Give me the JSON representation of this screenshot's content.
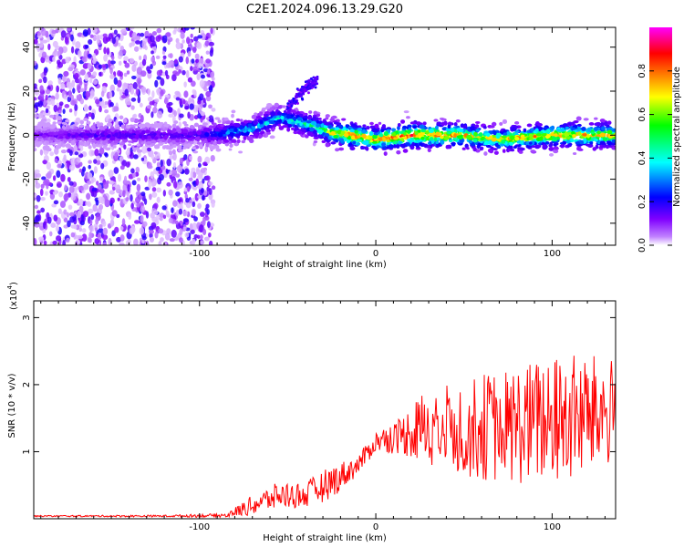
{
  "figure_title": "C2E1.2024.096.13.29.G20",
  "chart_data": [
    {
      "type": "heatmap",
      "xlabel": "Height of straight line (km)",
      "ylabel": "Frequency (Hz)",
      "xlim": [
        -194,
        136
      ],
      "ylim": [
        -50,
        49
      ],
      "x_ticks": [
        -100,
        0,
        100
      ],
      "x_tick_labels": [
        "-100",
        "0",
        "100"
      ],
      "y_ticks": [
        -40,
        -20,
        0,
        20,
        40
      ],
      "y_tick_labels": [
        "-40",
        "-20",
        "0",
        "20",
        "40"
      ],
      "grid": false,
      "colorbar": {
        "label": "Normalized spectral amplitude",
        "range": [
          0,
          1
        ],
        "ticks": [
          0.0,
          0.2,
          0.4,
          0.6,
          0.8
        ],
        "tick_labels": [
          "0.0",
          "0.2",
          "0.4",
          "0.6",
          "0.8"
        ],
        "colormap": [
          "#ffffff",
          "#8000ff",
          "#0000ff",
          "#00ffff",
          "#00ff00",
          "#ffff00",
          "#ff8000",
          "#ff0000",
          "#ff00ff"
        ]
      },
      "band": [
        {
          "x": -194,
          "f": 0,
          "amp": 0.15
        },
        {
          "x": -150,
          "f": 0,
          "amp": 0.22
        },
        {
          "x": -120,
          "f": 0,
          "amp": 0.2
        },
        {
          "x": -100,
          "f": 0,
          "amp": 0.22
        },
        {
          "x": -85,
          "f": 1,
          "amp": 0.4
        },
        {
          "x": -70,
          "f": 3,
          "amp": 0.45
        },
        {
          "x": -55,
          "f": 8,
          "amp": 0.45
        },
        {
          "x": -45,
          "f": 6,
          "amp": 0.5
        },
        {
          "x": -35,
          "f": 4,
          "amp": 0.55
        },
        {
          "x": -25,
          "f": 1,
          "amp": 0.7
        },
        {
          "x": -15,
          "f": 0,
          "amp": 0.9
        },
        {
          "x": 0,
          "f": -2,
          "amp": 0.85
        },
        {
          "x": 20,
          "f": 0,
          "amp": 0.95
        },
        {
          "x": 50,
          "f": 0,
          "amp": 0.8
        },
        {
          "x": 70,
          "f": -2,
          "amp": 0.75
        },
        {
          "x": 100,
          "f": 0,
          "amp": 0.85
        },
        {
          "x": 136,
          "f": 0,
          "amp": 0.8
        }
      ],
      "branch": [
        {
          "x": -50,
          "f": 12
        },
        {
          "x": -44,
          "f": 18
        },
        {
          "x": -38,
          "f": 22
        },
        {
          "x": -33,
          "f": 25
        }
      ],
      "scatter_region": {
        "x_range": [
          -194,
          -92
        ],
        "f_range": [
          -50,
          49
        ]
      }
    },
    {
      "type": "line",
      "xlabel": "Height of straight line (km)",
      "ylabel": "SNR (10 * v/v)",
      "y_multiplier": "(x10",
      "y_multiplier_exp": "4",
      "y_multiplier_close": ")",
      "xlim": [
        -194,
        136
      ],
      "ylim": [
        0,
        3.25
      ],
      "x_ticks": [
        -100,
        0,
        100
      ],
      "x_tick_labels": [
        "-100",
        "0",
        "100"
      ],
      "y_ticks": [
        1,
        2,
        3
      ],
      "y_tick_labels": [
        "1",
        "2",
        "3"
      ],
      "grid": false,
      "color": "#ff0000",
      "envelope": [
        {
          "x": -194,
          "mean": 0.04,
          "spread": 0.01
        },
        {
          "x": -120,
          "mean": 0.04,
          "spread": 0.015
        },
        {
          "x": -85,
          "mean": 0.05,
          "spread": 0.03
        },
        {
          "x": -70,
          "mean": 0.2,
          "spread": 0.15
        },
        {
          "x": -55,
          "mean": 0.35,
          "spread": 0.2
        },
        {
          "x": -40,
          "mean": 0.35,
          "spread": 0.2
        },
        {
          "x": -25,
          "mean": 0.55,
          "spread": 0.25
        },
        {
          "x": -10,
          "mean": 0.8,
          "spread": 0.15
        },
        {
          "x": 0,
          "mean": 1.15,
          "spread": 0.15
        },
        {
          "x": 15,
          "mean": 1.25,
          "spread": 0.3
        },
        {
          "x": 30,
          "mean": 1.4,
          "spread": 0.6
        },
        {
          "x": 50,
          "mean": 1.35,
          "spread": 0.75
        },
        {
          "x": 80,
          "mean": 1.4,
          "spread": 0.9
        },
        {
          "x": 110,
          "mean": 1.5,
          "spread": 1.0
        },
        {
          "x": 136,
          "mean": 1.6,
          "spread": 0.8
        }
      ]
    }
  ]
}
